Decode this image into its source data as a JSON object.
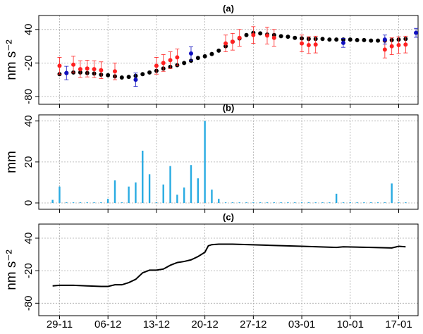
{
  "chart_data": [
    {
      "type": "scatter",
      "title": "(a)",
      "ylabel": "nm s⁻²",
      "ylim": [
        -94,
        65
      ],
      "yticks": [
        -80,
        -20,
        40
      ],
      "grid": true,
      "series": [
        {
          "color": "#000000",
          "x": [
            0,
            1,
            2,
            3,
            4,
            5,
            6,
            7,
            8,
            9,
            10,
            11,
            12,
            13,
            14,
            15,
            16,
            17,
            18,
            19,
            20,
            21,
            22,
            23,
            24,
            25,
            26,
            27,
            28,
            29,
            30,
            31,
            32,
            33,
            34,
            35,
            36,
            37,
            38,
            39,
            40,
            41,
            42,
            43,
            44,
            45,
            46,
            47,
            48,
            49,
            50
          ],
          "values": [
            -40,
            -38,
            -37,
            -37,
            -38,
            -39,
            -41,
            -42,
            -44,
            -46,
            -45,
            -43,
            -40,
            -37,
            -34,
            -30,
            -27,
            -24,
            -20,
            -16,
            -11,
            -8,
            -4,
            2,
            10,
            18,
            24,
            30,
            34,
            33,
            31,
            30,
            28,
            27,
            25,
            24,
            23,
            23,
            23,
            22,
            22,
            22,
            22,
            21,
            21,
            20,
            20,
            20,
            21,
            22,
            23
          ]
        },
        {
          "color": "#ff2020",
          "x": [
            0,
            2,
            3,
            4,
            5,
            6,
            8,
            14,
            15,
            16,
            17,
            24,
            25,
            26,
            28,
            30,
            31,
            35,
            36,
            37,
            47,
            48,
            49,
            50
          ],
          "values": [
            -25,
            -23,
            -31,
            -30,
            -31,
            -33,
            -35,
            -25,
            -20,
            -15,
            -10,
            15,
            18,
            25,
            30,
            29,
            25,
            15,
            12,
            13,
            4,
            10,
            12,
            13
          ],
          "errors": [
            15,
            15,
            15,
            15,
            15,
            15,
            15,
            15,
            15,
            15,
            15,
            15,
            15,
            15,
            15,
            15,
            15,
            15,
            15,
            15,
            15,
            15,
            15,
            15
          ]
        },
        {
          "color": "#1010c0",
          "x": [
            1,
            11,
            19,
            41,
            47,
            51.5
          ],
          "values": [
            -38,
            -50,
            -3,
            16,
            22,
            34
          ],
          "errors": [
            12,
            12,
            12,
            8,
            8,
            8
          ]
        }
      ]
    },
    {
      "type": "bar",
      "title": "(b)",
      "ylabel": "mm",
      "color": "#29abe2",
      "ylim": [
        -3.1,
        43
      ],
      "yticks": [
        0,
        20,
        40
      ],
      "grid": true,
      "x": [
        -1,
        0,
        1,
        2,
        3,
        4,
        5,
        6,
        7,
        8,
        9,
        10,
        11,
        12,
        13,
        14,
        15,
        16,
        17,
        18,
        19,
        20,
        21,
        22,
        23,
        24,
        25,
        26,
        27,
        28,
        29,
        30,
        31,
        32,
        33,
        34,
        35,
        36,
        37,
        38,
        39,
        40,
        41,
        42,
        43,
        44,
        45,
        46,
        47,
        48,
        49,
        50
      ],
      "values": [
        1.5,
        8,
        0.3,
        0.3,
        0.3,
        0.3,
        0.3,
        0.3,
        2,
        11,
        0.3,
        8,
        10,
        25.5,
        14,
        0.3,
        9,
        18,
        4,
        7.5,
        18.5,
        12,
        40,
        6.5,
        2,
        0.3,
        0.3,
        0.3,
        0.3,
        0.3,
        0.3,
        0.3,
        0.3,
        0.3,
        0.3,
        0.3,
        0.3,
        0.3,
        0.3,
        0.3,
        0.3,
        4.5,
        0.3,
        0.3,
        0.3,
        0.3,
        0.3,
        0.3,
        0.3,
        9.5,
        0.3,
        0.3
      ]
    },
    {
      "type": "line",
      "title": "(c)",
      "ylabel": "nm s⁻²",
      "color": "#000000",
      "ylim": [
        -103,
        66
      ],
      "yticks": [
        -80,
        -20,
        40
      ],
      "grid": true,
      "xlim": [
        -3,
        51.8
      ],
      "xticks": [
        {
          "value": 0,
          "label": "29-11"
        },
        {
          "value": 7,
          "label": "06-12"
        },
        {
          "value": 14,
          "label": "13-12"
        },
        {
          "value": 21,
          "label": "20-12"
        },
        {
          "value": 28,
          "label": "27-12"
        },
        {
          "value": 35,
          "label": "03-01"
        },
        {
          "value": 42,
          "label": "10-01"
        },
        {
          "value": 49,
          "label": "17-01"
        }
      ],
      "x": [
        -1,
        0,
        2,
        4,
        6,
        7,
        8,
        9,
        10,
        11,
        12,
        13,
        14,
        15,
        16,
        17,
        18,
        19,
        20,
        21,
        21.5,
        22,
        23,
        25,
        30,
        35,
        40,
        41,
        45,
        48,
        49,
        50
      ],
      "values": [
        -48,
        -47,
        -47,
        -48,
        -49,
        -49,
        -46,
        -46,
        -42,
        -36,
        -24,
        -19,
        -19,
        -17,
        -10,
        -5,
        -3,
        0,
        6,
        14,
        26,
        28,
        29,
        29,
        27,
        25,
        23,
        24,
        23,
        22,
        25,
        24
      ]
    }
  ]
}
